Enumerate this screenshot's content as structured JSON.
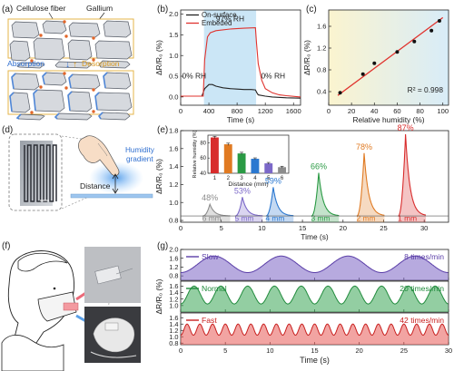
{
  "panels": {
    "a": {
      "letter": "(a)",
      "label_fiber": "Cellulose fiber",
      "label_gallium": "Gallium",
      "label_absorption": "Absorption",
      "label_desorption": "Desorption",
      "colors": {
        "fiber": "#d6d9de",
        "fiber_edge": "#555b66",
        "water": "#4f86d6",
        "gallium": "#e2662a",
        "box": "#e4b44a",
        "absorption": "#2f6fd0",
        "desorption": "#d99a1e"
      }
    },
    "b": {
      "letter": "(b)",
      "ann_97": "97% RH",
      "ann_0_left": "0% RH",
      "ann_0_right": "0% RH",
      "legend": [
        "On-surface",
        "Embeded"
      ]
    },
    "c": {
      "letter": "(c)",
      "r2": "R² = 0.998"
    },
    "d": {
      "letter": "(d)",
      "label_humidity": "Humidity",
      "label_gradient": "gradient",
      "label_distance": "Distance"
    },
    "e": {
      "letter": "(e)"
    },
    "f": {
      "letter": "(f)"
    },
    "g": {
      "letter": "(g)"
    }
  },
  "chart_data": [
    {
      "panel": "b",
      "type": "line",
      "xlabel": "Time (s)",
      "ylabel": "ΔR/R₀ (%)",
      "xlim": [
        0,
        1700
      ],
      "ylim": [
        -0.2,
        2.1
      ],
      "xticks": [
        0,
        400,
        800,
        1200,
        1600
      ],
      "yticks": [
        0.0,
        0.5,
        1.0,
        1.5,
        2.0
      ],
      "shaded_region": [
        330,
        1070
      ],
      "series": [
        {
          "name": "On-surface",
          "color": "#222222",
          "x": [
            0,
            300,
            340,
            400,
            450,
            500,
            600,
            700,
            800,
            900,
            1000,
            1060,
            1080,
            1100,
            1200,
            1300,
            1500,
            1700
          ],
          "y": [
            0.02,
            0.02,
            0.2,
            0.3,
            0.3,
            0.26,
            0.22,
            0.2,
            0.19,
            0.18,
            0.18,
            0.17,
            0.1,
            0.05,
            0.02,
            0.0,
            -0.02,
            -0.03
          ]
        },
        {
          "name": "Embeded",
          "color": "#e0332e",
          "x": [
            0,
            320,
            340,
            380,
            420,
            500,
            700,
            900,
            1060,
            1075,
            1100,
            1150,
            1200,
            1300,
            1400,
            1500,
            1700
          ],
          "y": [
            0.02,
            0.02,
            0.9,
            1.45,
            1.55,
            1.6,
            1.64,
            1.66,
            1.67,
            1.3,
            0.8,
            0.4,
            0.2,
            0.1,
            0.05,
            0.03,
            0.0
          ]
        }
      ]
    },
    {
      "panel": "c",
      "type": "scatter",
      "xlabel": "Relative humidity (%)",
      "ylabel": "ΔR/R₀ (%)",
      "xlim": [
        0,
        105
      ],
      "ylim": [
        0.15,
        1.9
      ],
      "xticks": [
        0,
        20,
        40,
        60,
        80,
        100
      ],
      "yticks": [
        0.4,
        0.8,
        1.2,
        1.6
      ],
      "x": [
        10,
        30,
        40,
        60,
        75,
        90,
        97
      ],
      "y": [
        0.38,
        0.72,
        0.92,
        1.13,
        1.32,
        1.52,
        1.7
      ],
      "fit": {
        "color": "#e0332e",
        "x": [
          8,
          100
        ],
        "y": [
          0.33,
          1.76
        ]
      }
    },
    {
      "panel": "e",
      "type": "line",
      "xlabel": "Time (s)",
      "ylabel": "ΔR/R₀ (%)",
      "xlim": [
        0,
        33
      ],
      "ylim": [
        0.78,
        1.8
      ],
      "xticks": [
        0,
        5,
        10,
        15,
        20,
        25,
        30
      ],
      "yticks": [
        0.8,
        1.0,
        1.2,
        1.4,
        1.6,
        1.8
      ],
      "peaks": [
        {
          "t": 3.6,
          "peak": 0.98,
          "rh": "48%",
          "distance": "6 mm",
          "color": "#8c8c8c"
        },
        {
          "t": 7.6,
          "peak": 1.06,
          "rh": "53%",
          "distance": "5 mm",
          "color": "#7b68c8"
        },
        {
          "t": 11.4,
          "peak": 1.17,
          "rh": "59%",
          "distance": "4 mm",
          "color": "#2b78d0"
        },
        {
          "t": 17.0,
          "peak": 1.33,
          "rh": "66%",
          "distance": "3 mm",
          "color": "#2a9a44"
        },
        {
          "t": 22.6,
          "peak": 1.55,
          "rh": "78%",
          "distance": "2 mm",
          "color": "#e07a22"
        },
        {
          "t": 27.7,
          "peak": 1.76,
          "rh": "87%",
          "distance": "1 mm",
          "color": "#d82c2c"
        }
      ]
    },
    {
      "panel": "e-inset",
      "type": "bar",
      "xlabel": "Distance (mm)",
      "ylabel": "Relative humidity (%)",
      "ylim": [
        40,
        90
      ],
      "yticks": [
        40,
        60,
        80
      ],
      "categories": [
        "1",
        "2",
        "3",
        "4",
        "5",
        "6"
      ],
      "values": [
        87,
        78,
        66,
        59,
        53,
        48
      ],
      "errors": [
        1.5,
        1.5,
        1.5,
        1.2,
        1.2,
        1.2
      ],
      "colors": [
        "#d82c2c",
        "#e07a22",
        "#2a9a44",
        "#2b78d0",
        "#7b68c8",
        "#8c8c8c"
      ]
    },
    {
      "panel": "g",
      "type": "line",
      "xlabel": "Time (s)",
      "ylabel": "ΔR/R₀ (%)",
      "xlim": [
        0,
        30
      ],
      "xticks": [
        0,
        5,
        10,
        15,
        20,
        25,
        30
      ],
      "series": [
        {
          "name": "Slow",
          "rate": "8 times/min",
          "per_min": 8,
          "color": "#5b3fa8",
          "fill": "#7c64c4",
          "base": 0.95,
          "amp": 0.75,
          "ylim": [
            0.6,
            2.0
          ],
          "yticks": [
            0.8,
            1.2,
            1.6,
            2.0
          ]
        },
        {
          "name": "Normal",
          "rate": "20 times/min",
          "per_min": 20,
          "color": "#1f8a3b",
          "fill": "#3aa655",
          "base": 1.05,
          "amp": 0.55,
          "ylim": [
            0.8,
            1.75
          ],
          "yticks": [
            1.0,
            1.2,
            1.4,
            1.6
          ]
        },
        {
          "name": "Fast",
          "rate": "42 times/min",
          "per_min": 42,
          "color": "#c8201f",
          "fill": "#e85a55",
          "base": 1.05,
          "amp": 0.35,
          "ylim": [
            0.75,
            1.75
          ],
          "yticks": [
            0.8,
            1.0,
            1.2,
            1.4,
            1.6
          ]
        }
      ]
    }
  ]
}
